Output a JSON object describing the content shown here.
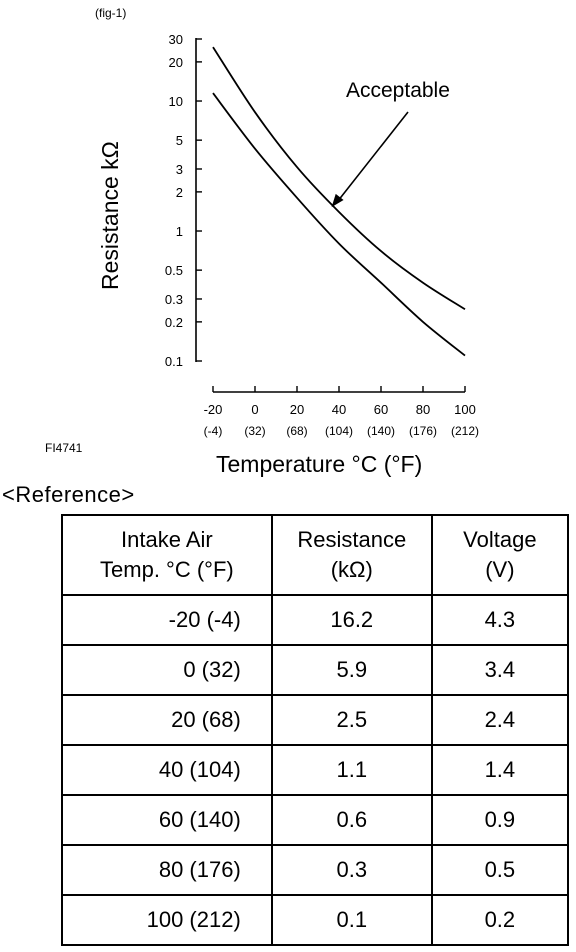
{
  "figure_label": "(fig-1)",
  "figure_code": "FI4741",
  "chart_data": {
    "type": "line",
    "ylabel": "Resistance kΩ",
    "xlabel": "Temperature °C (°F)",
    "yscale": "log",
    "ylim": [
      0.1,
      30
    ],
    "xlim": [
      -20,
      100
    ],
    "yticks": [
      {
        "value": 30,
        "label": "30"
      },
      {
        "value": 20,
        "label": "20"
      },
      {
        "value": 10,
        "label": "10"
      },
      {
        "value": 5,
        "label": "5"
      },
      {
        "value": 3,
        "label": "3"
      },
      {
        "value": 2,
        "label": "2"
      },
      {
        "value": 1,
        "label": "1"
      },
      {
        "value": 0.5,
        "label": "0.5"
      },
      {
        "value": 0.3,
        "label": "0.3"
      },
      {
        "value": 0.2,
        "label": "0.2"
      },
      {
        "value": 0.1,
        "label": "0.1"
      }
    ],
    "xticks": [
      {
        "value": -20,
        "c": "-20",
        "f": "(-4)"
      },
      {
        "value": 0,
        "c": "0",
        "f": "(32)"
      },
      {
        "value": 20,
        "c": "20",
        "f": "(68)"
      },
      {
        "value": 40,
        "c": "40",
        "f": "(104)"
      },
      {
        "value": 60,
        "c": "60",
        "f": "(140)"
      },
      {
        "value": 80,
        "c": "80",
        "f": "(176)"
      },
      {
        "value": 100,
        "c": "100",
        "f": "(212)"
      }
    ],
    "series": [
      {
        "x": [
          -20,
          0,
          20,
          40,
          60,
          80,
          100
        ],
        "y": [
          26,
          8.2,
          3.1,
          1.4,
          0.7,
          0.4,
          0.25
        ]
      },
      {
        "x": [
          -20,
          0,
          20,
          40,
          60,
          80,
          100
        ],
        "y": [
          11.5,
          4.3,
          1.8,
          0.8,
          0.4,
          0.2,
          0.11
        ]
      }
    ],
    "annotation": {
      "text": "Acceptable",
      "x": 36,
      "y": 1.5
    }
  },
  "reference": {
    "title": "<Reference>",
    "headers": [
      {
        "line1": "Intake Air",
        "line2": "Temp. °C (°F)"
      },
      {
        "line1": "Resistance",
        "line2": "(kΩ)"
      },
      {
        "line1": "Voltage",
        "line2": "(V)"
      }
    ],
    "rows": [
      {
        "temp": "-20 (-4)",
        "resistance": "16.2",
        "voltage": "4.3"
      },
      {
        "temp": "0 (32)",
        "resistance": "5.9",
        "voltage": "3.4"
      },
      {
        "temp": "20 (68)",
        "resistance": "2.5",
        "voltage": "2.4"
      },
      {
        "temp": "40 (104)",
        "resistance": "1.1",
        "voltage": "1.4"
      },
      {
        "temp": "60 (140)",
        "resistance": "0.6",
        "voltage": "0.9"
      },
      {
        "temp": "80 (176)",
        "resistance": "0.3",
        "voltage": "0.5"
      },
      {
        "temp": "100 (212)",
        "resistance": "0.1",
        "voltage": "0.2"
      }
    ]
  }
}
